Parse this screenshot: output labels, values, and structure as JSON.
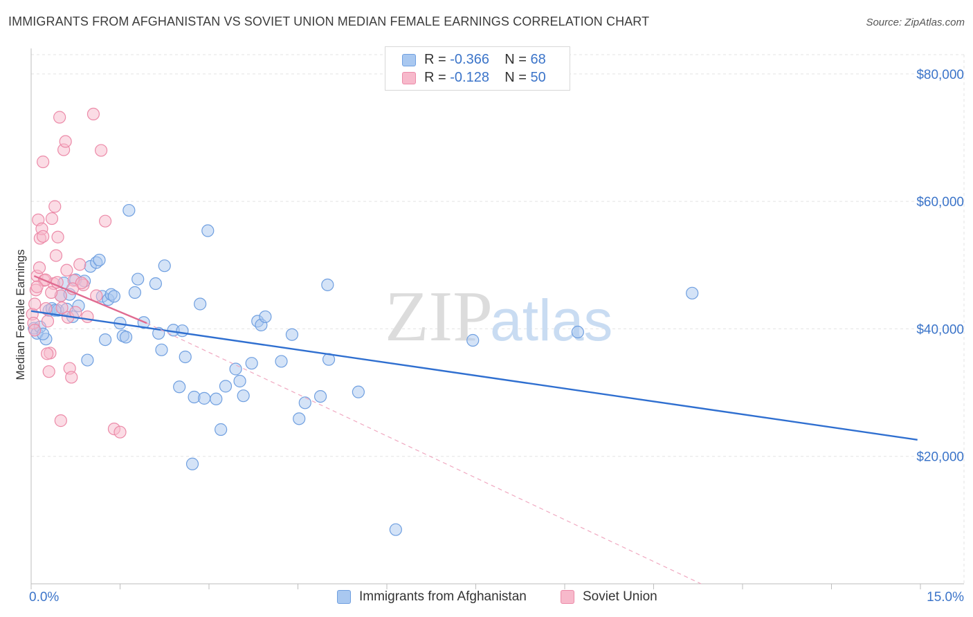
{
  "header": {
    "title": "IMMIGRANTS FROM AFGHANISTAN VS SOVIET UNION MEDIAN FEMALE EARNINGS CORRELATION CHART",
    "source": "Source: ZipAtlas.com"
  },
  "watermark": {
    "zip": "ZIP",
    "atlas": "atlas"
  },
  "legend": {
    "rows": [
      {
        "r_label": "R =",
        "r_value": "-0.366",
        "n_label": "N =",
        "n_value": "68",
        "color": "#a9c8f0",
        "stroke": "#6f9fe0"
      },
      {
        "r_label": "R =",
        "r_value": "-0.128",
        "n_label": "N =",
        "n_value": "50",
        "color": "#f7b9cb",
        "stroke": "#ec8aa8"
      }
    ]
  },
  "chart_data": {
    "type": "scatter",
    "title": "IMMIGRANTS FROM AFGHANISTAN VS SOVIET UNION MEDIAN FEMALE EARNINGS CORRELATION CHART",
    "xlabel": "",
    "ylabel": "Median Female Earnings",
    "xlim": [
      0,
      15
    ],
    "ylim": [
      0,
      84000
    ],
    "x_tick_labels": [
      "0.0%",
      "15.0%"
    ],
    "y_ticks": [
      20000,
      40000,
      60000,
      80000
    ],
    "y_tick_labels": [
      "$20,000",
      "$40,000",
      "$60,000",
      "$80,000"
    ],
    "grid": true,
    "series": [
      {
        "name": "Immigrants from Afghanistan",
        "color": "#a9c8f0",
        "stroke": "#6f9fe0",
        "trend": {
          "x": [
            0.0,
            14.95
          ],
          "y": [
            42800,
            22600
          ],
          "color": "#2f6fd0",
          "style": "solid"
        },
        "points": [
          [
            0.05,
            40100
          ],
          [
            0.1,
            39300
          ],
          [
            0.15,
            40300
          ],
          [
            0.25,
            38400
          ],
          [
            0.3,
            42900
          ],
          [
            0.35,
            43200
          ],
          [
            0.45,
            42900
          ],
          [
            0.5,
            45200
          ],
          [
            0.55,
            47200
          ],
          [
            0.6,
            43100
          ],
          [
            0.7,
            41900
          ],
          [
            0.75,
            47700
          ],
          [
            0.8,
            43600
          ],
          [
            0.9,
            47500
          ],
          [
            0.95,
            35100
          ],
          [
            1.0,
            49800
          ],
          [
            1.1,
            50400
          ],
          [
            1.15,
            50800
          ],
          [
            1.2,
            45100
          ],
          [
            1.25,
            38300
          ],
          [
            1.3,
            44600
          ],
          [
            1.35,
            45400
          ],
          [
            1.4,
            45100
          ],
          [
            1.5,
            40900
          ],
          [
            1.55,
            38900
          ],
          [
            1.6,
            38700
          ],
          [
            1.65,
            58600
          ],
          [
            1.75,
            45700
          ],
          [
            1.8,
            47800
          ],
          [
            1.9,
            41000
          ],
          [
            2.1,
            47100
          ],
          [
            2.15,
            39300
          ],
          [
            2.2,
            36700
          ],
          [
            2.25,
            49900
          ],
          [
            2.4,
            39800
          ],
          [
            2.5,
            30900
          ],
          [
            2.55,
            39700
          ],
          [
            2.6,
            35600
          ],
          [
            2.75,
            29300
          ],
          [
            2.85,
            43900
          ],
          [
            2.92,
            29100
          ],
          [
            2.98,
            55400
          ],
          [
            3.12,
            29000
          ],
          [
            3.2,
            24200
          ],
          [
            3.28,
            31000
          ],
          [
            3.45,
            33700
          ],
          [
            3.52,
            31800
          ],
          [
            3.58,
            29500
          ],
          [
            3.72,
            34600
          ],
          [
            3.82,
            41200
          ],
          [
            3.88,
            40600
          ],
          [
            3.95,
            41900
          ],
          [
            4.22,
            34900
          ],
          [
            4.4,
            39100
          ],
          [
            4.52,
            25900
          ],
          [
            4.62,
            28400
          ],
          [
            4.88,
            29400
          ],
          [
            5.0,
            46900
          ],
          [
            5.02,
            35200
          ],
          [
            5.52,
            30100
          ],
          [
            2.72,
            18800
          ],
          [
            6.15,
            8500
          ],
          [
            7.45,
            38200
          ],
          [
            9.22,
            39500
          ],
          [
            11.15,
            45600
          ],
          [
            0.4,
            42900
          ],
          [
            0.65,
            45400
          ],
          [
            0.2,
            39200
          ]
        ]
      },
      {
        "name": "Soviet Union",
        "color": "#f7b9cb",
        "stroke": "#ec8aa8",
        "trend": {
          "x": [
            0.05,
            1.95
          ],
          "y": [
            48300,
            40900
          ],
          "color": "#e06a90",
          "style": "solid"
        },
        "trend_extended": {
          "x": [
            1.95,
            11.3
          ],
          "y": [
            40900,
            0
          ],
          "color": "#f0a8c0",
          "style": "dashed"
        },
        "points": [
          [
            0.02,
            42300
          ],
          [
            0.04,
            40900
          ],
          [
            0.06,
            39800
          ],
          [
            0.08,
            46100
          ],
          [
            0.1,
            48300
          ],
          [
            0.12,
            57100
          ],
          [
            0.15,
            54200
          ],
          [
            0.18,
            55700
          ],
          [
            0.2,
            66200
          ],
          [
            0.22,
            47600
          ],
          [
            0.25,
            43200
          ],
          [
            0.28,
            41200
          ],
          [
            0.3,
            33300
          ],
          [
            0.32,
            36200
          ],
          [
            0.35,
            57300
          ],
          [
            0.38,
            47100
          ],
          [
            0.4,
            59200
          ],
          [
            0.42,
            51500
          ],
          [
            0.45,
            54400
          ],
          [
            0.48,
            73200
          ],
          [
            0.5,
            45200
          ],
          [
            0.52,
            43300
          ],
          [
            0.55,
            68100
          ],
          [
            0.58,
            69400
          ],
          [
            0.6,
            49200
          ],
          [
            0.62,
            41800
          ],
          [
            0.65,
            33800
          ],
          [
            0.68,
            32400
          ],
          [
            0.72,
            47600
          ],
          [
            0.75,
            42600
          ],
          [
            0.82,
            50100
          ],
          [
            0.88,
            46900
          ],
          [
            0.95,
            41900
          ],
          [
            1.05,
            73700
          ],
          [
            1.1,
            45200
          ],
          [
            1.18,
            68000
          ],
          [
            1.25,
            56900
          ],
          [
            1.4,
            24300
          ],
          [
            1.5,
            23800
          ],
          [
            0.5,
            25600
          ],
          [
            0.06,
            43900
          ],
          [
            0.1,
            46600
          ],
          [
            0.14,
            49600
          ],
          [
            0.24,
            47700
          ],
          [
            0.34,
            45700
          ],
          [
            0.44,
            47300
          ],
          [
            0.27,
            36100
          ],
          [
            0.2,
            54500
          ],
          [
            0.85,
            47200
          ],
          [
            0.7,
            46300
          ]
        ]
      }
    ]
  },
  "bottom_legend": {
    "items": [
      {
        "label": "Immigrants from Afghanistan",
        "color": "#a9c8f0",
        "stroke": "#6f9fe0"
      },
      {
        "label": "Soviet Union",
        "color": "#f7b9cb",
        "stroke": "#ec8aa8"
      }
    ]
  }
}
